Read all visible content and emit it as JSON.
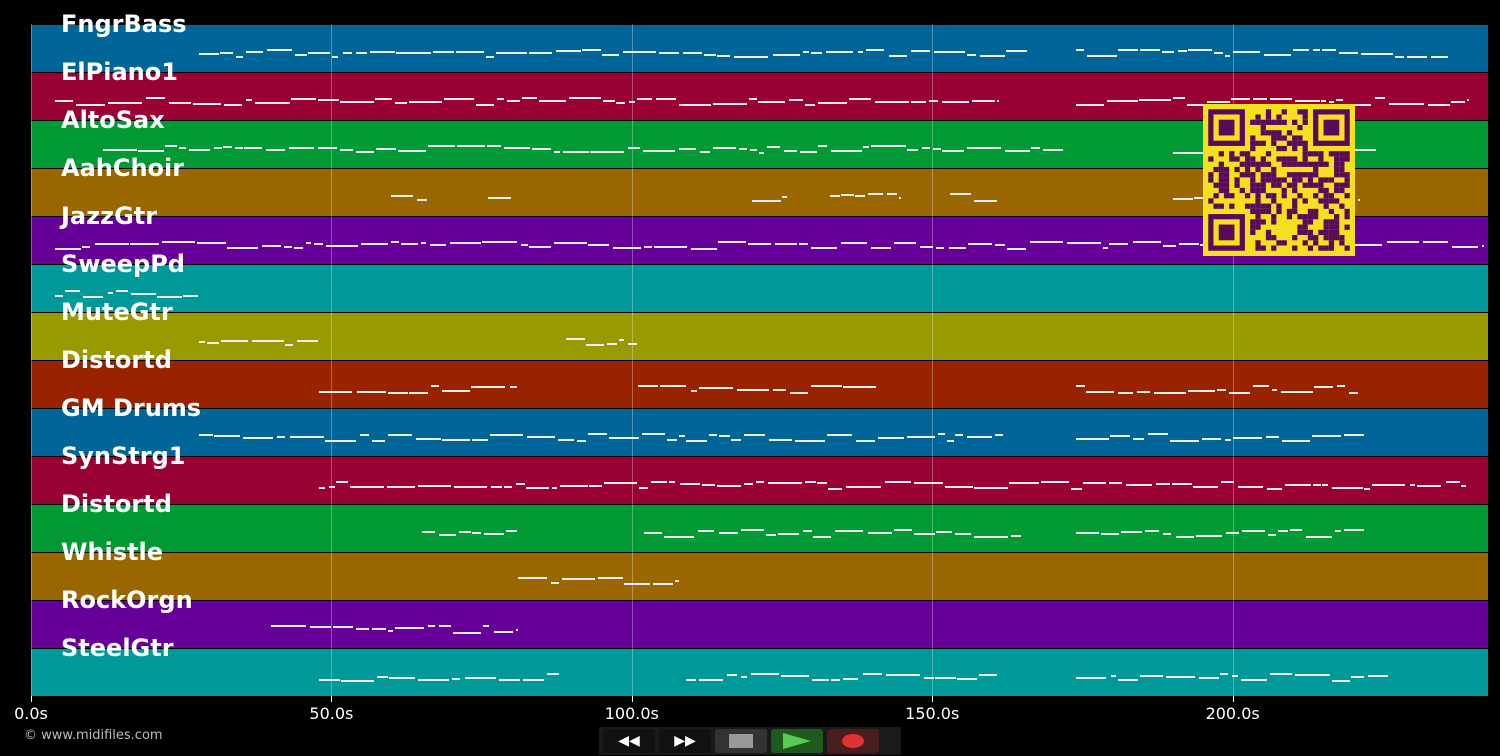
{
  "tracks": [
    {
      "name": "FngrBass",
      "color": "#006699",
      "notes": [
        [
          28,
          166
        ],
        [
          174,
          236
        ]
      ]
    },
    {
      "name": "ElPiano1",
      "color": "#990033",
      "notes": [
        [
          4,
          161
        ],
        [
          174,
          239
        ]
      ]
    },
    {
      "name": "AltoSax",
      "color": "#009933",
      "notes": [
        [
          12,
          172
        ],
        [
          190,
          224
        ]
      ]
    },
    {
      "name": "AahChoir",
      "color": "#996600",
      "notes": [
        [
          60,
          66
        ],
        [
          76,
          80
        ],
        [
          120,
          126
        ],
        [
          133,
          145
        ],
        [
          153,
          161
        ],
        [
          190,
          221
        ]
      ]
    },
    {
      "name": "JazzGtr",
      "color": "#660099",
      "notes": [
        [
          4,
          242
        ]
      ]
    },
    {
      "name": "SweepPd",
      "color": "#009999",
      "notes": [
        [
          4,
          28
        ]
      ]
    },
    {
      "name": "MuteGtr",
      "color": "#999900",
      "notes": [
        [
          28,
          48
        ],
        [
          89,
          101
        ]
      ]
    },
    {
      "name": "Distortd",
      "color": "#992200",
      "notes": [
        [
          48,
          81
        ],
        [
          101,
          141
        ],
        [
          174,
          221
        ]
      ]
    },
    {
      "name": "GM Drums",
      "color": "#006699",
      "notes": [
        [
          28,
          162
        ],
        [
          174,
          222
        ]
      ]
    },
    {
      "name": "SynStrg1",
      "color": "#990033",
      "notes": [
        [
          48,
          239
        ]
      ]
    },
    {
      "name": "Distortd",
      "color": "#009933",
      "notes": [
        [
          65,
          81
        ],
        [
          102,
          165
        ],
        [
          174,
          222
        ]
      ]
    },
    {
      "name": "Whistle",
      "color": "#996600",
      "notes": [
        [
          81,
          108
        ]
      ]
    },
    {
      "name": "RockOrgn",
      "color": "#660099",
      "notes": [
        [
          40,
          81
        ]
      ]
    },
    {
      "name": "SteelGtr",
      "color": "#009999",
      "notes": [
        [
          48,
          88
        ],
        [
          109,
          161
        ],
        [
          174,
          226
        ]
      ]
    }
  ],
  "axis": {
    "max_seconds": 242.5,
    "ticks": [
      {
        "v": 0,
        "label": "0.0s"
      },
      {
        "v": 50,
        "label": "50.0s"
      },
      {
        "v": 100,
        "label": "100.0s"
      },
      {
        "v": 150,
        "label": "150.0s"
      },
      {
        "v": 200,
        "label": "200.0s"
      }
    ]
  },
  "copyright": "© www.midifiles.com",
  "controls": {
    "rewind": "◀◀",
    "forward": "▶▶"
  }
}
